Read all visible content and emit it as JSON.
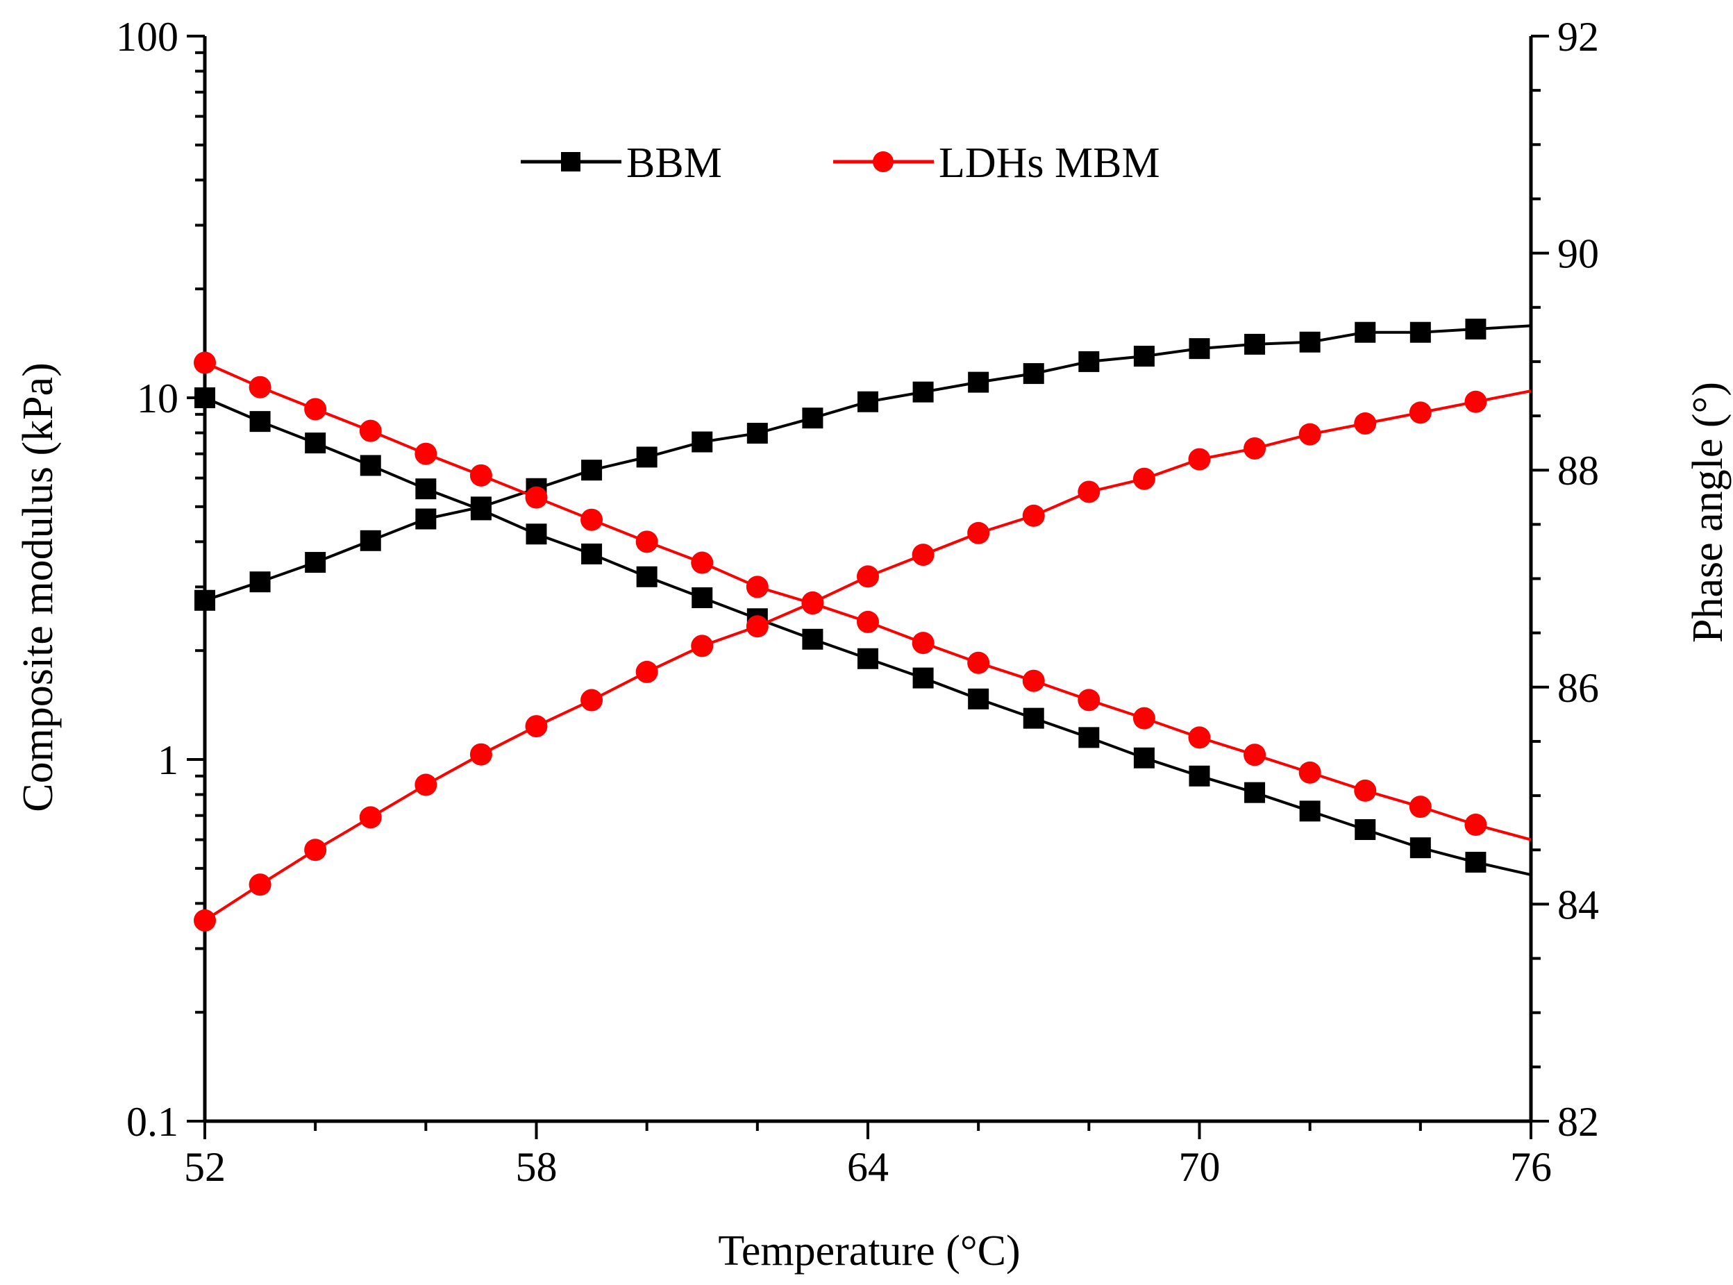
{
  "chart_data": {
    "type": "line",
    "title": "",
    "xlabel": "Temperature (°C)",
    "ylabel_left": "Composite modulus (kPa)",
    "ylabel_right": "Phase angle (°)",
    "xlim": [
      52,
      76
    ],
    "x_ticks": [
      52,
      58,
      64,
      70,
      76
    ],
    "x_tick_labels": [
      "52",
      "58",
      "64",
      "70",
      "76"
    ],
    "ylim_left": [
      0.1,
      100
    ],
    "y_left_scale": "log",
    "y_left_ticks": [
      0.1,
      1,
      10,
      100
    ],
    "y_left_tick_labels": [
      "0.1",
      "1",
      "10",
      "100"
    ],
    "ylim_right": [
      82,
      92
    ],
    "y_right_ticks": [
      82,
      84,
      86,
      88,
      90,
      92
    ],
    "y_right_tick_labels": [
      "82",
      "84",
      "86",
      "88",
      "90",
      "92"
    ],
    "grid": false,
    "legend_position": "top-center",
    "x": [
      52,
      53,
      54,
      55,
      56,
      57,
      58,
      59,
      60,
      61,
      62,
      63,
      64,
      65,
      66,
      67,
      68,
      69,
      70,
      71,
      72,
      73,
      74,
      75
    ],
    "series": [
      {
        "name": "BBM",
        "quantity": "composite modulus",
        "axis": "left",
        "color": "#000000",
        "marker": "square",
        "values": [
          10.0,
          8.6,
          7.5,
          6.5,
          5.6,
          4.9,
          4.2,
          3.7,
          3.2,
          2.8,
          2.45,
          2.15,
          1.9,
          1.68,
          1.47,
          1.3,
          1.15,
          1.01,
          0.9,
          0.81,
          0.72,
          0.64,
          0.57,
          0.52
        ],
        "end_value": 0.48
      },
      {
        "name": "BBM",
        "quantity": "phase angle",
        "axis": "right",
        "color": "#000000",
        "marker": "square",
        "values": [
          86.8,
          86.97,
          87.15,
          87.35,
          87.55,
          87.66,
          87.83,
          88.0,
          88.12,
          88.26,
          88.34,
          88.48,
          88.63,
          88.72,
          88.81,
          88.89,
          89.0,
          89.05,
          89.12,
          89.16,
          89.18,
          89.27,
          89.27,
          89.3
        ],
        "end_value": 89.33
      },
      {
        "name": "LDHs MBM",
        "quantity": "composite modulus",
        "axis": "left",
        "color": "#ff0000",
        "marker": "circle",
        "values": [
          12.5,
          10.7,
          9.3,
          8.1,
          7.0,
          6.1,
          5.3,
          4.6,
          4.0,
          3.5,
          3.0,
          2.7,
          2.4,
          2.1,
          1.85,
          1.65,
          1.46,
          1.3,
          1.15,
          1.03,
          0.92,
          0.82,
          0.74,
          0.66
        ],
        "end_value": 0.6
      },
      {
        "name": "LDHs MBM",
        "quantity": "phase angle",
        "axis": "right",
        "color": "#ff0000",
        "marker": "circle",
        "values": [
          83.85,
          84.18,
          84.5,
          84.8,
          85.1,
          85.38,
          85.64,
          85.88,
          86.14,
          86.38,
          86.56,
          86.78,
          87.02,
          87.22,
          87.42,
          87.58,
          87.8,
          87.92,
          88.1,
          88.2,
          88.33,
          88.43,
          88.53,
          88.63
        ],
        "end_value": 88.73
      }
    ]
  }
}
